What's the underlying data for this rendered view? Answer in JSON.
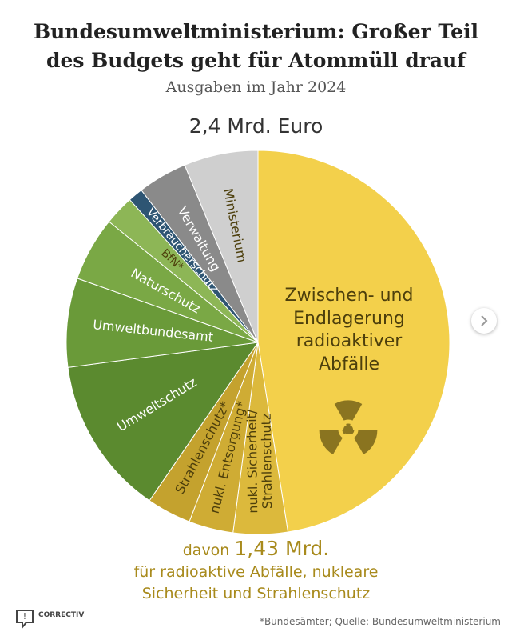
{
  "chart_data": {
    "type": "pie",
    "title": "Bundesumweltministerium: Großer Teil des Budgets geht für Atommüll drauf",
    "subtitle": "Ausgaben im Jahr 2024",
    "total_label": "2,4 Mrd. Euro",
    "categories": [
      "Zwischen- und Endlagerung radioaktiver Abfälle",
      "nukl. Sicherheit/\nStrahlenschutz",
      "nukl. Entsorgung*",
      "Strahlenschutz*",
      "Umweltschutz",
      "Umweltbundesamt",
      "Naturschutz",
      "BfN*",
      "Verbraucherschutz",
      "Verwaltung",
      "Ministerium"
    ],
    "values": [
      1.14,
      0.11,
      0.09,
      0.09,
      0.32,
      0.18,
      0.13,
      0.06,
      0.03,
      0.1,
      0.15
    ],
    "colors": [
      "#f3d04b",
      "#dcb93c",
      "#cfac34",
      "#c4a22e",
      "#5b8a2f",
      "#6a9a39",
      "#7aa845",
      "#8db656",
      "#2e5573",
      "#8a8a8a",
      "#cfcfcf"
    ],
    "annotation": {
      "prefix": "davon",
      "amount": "1,43 Mrd.",
      "text": "für radioaktive Abfälle, nukleare Sicherheit und Strahlenschutz"
    },
    "footnote": "*Bundesämter; Quelle: Bundesumweltministerium",
    "logo": "CORRECTIV"
  }
}
